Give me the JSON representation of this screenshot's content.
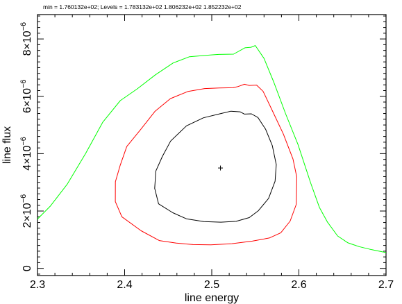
{
  "chart_data": {
    "type": "line",
    "title": "min = 1.760132e+02; Levels =  1.783132e+02 1.806232e+02 1.852232e+02",
    "xlabel": "line energy",
    "ylabel": "line flux",
    "xlim": [
      2.3,
      2.7
    ],
    "ylim": [
      -2.5e-07,
      8.85e-06
    ],
    "x_ticks": [
      {
        "value": 2.3,
        "label": "2.3"
      },
      {
        "value": 2.4,
        "label": "2.4"
      },
      {
        "value": 2.5,
        "label": "2.5"
      },
      {
        "value": 2.6,
        "label": "2.6"
      },
      {
        "value": 2.7,
        "label": "2.7"
      }
    ],
    "y_ticks": [
      {
        "value": 0,
        "mantissa": "0",
        "exponent": ""
      },
      {
        "value": 2e-06,
        "mantissa": "2×10",
        "exponent": "−6"
      },
      {
        "value": 4e-06,
        "mantissa": "4×10",
        "exponent": "−6"
      },
      {
        "value": 6e-06,
        "mantissa": "6×10",
        "exponent": "−6"
      },
      {
        "value": 8e-06,
        "mantissa": "8×10",
        "exponent": "−6"
      }
    ],
    "best_fit": {
      "x": 2.51,
      "y": 3.5e-06
    },
    "grid": false,
    "series": [
      {
        "color": "#000000",
        "level": "1.783132e+02",
        "closed": true,
        "points": [
          [
            2.5108,
            5.4e-06
          ],
          [
            2.522,
            5.48e-06
          ],
          [
            2.5325,
            5.46e-06
          ],
          [
            2.5375,
            5.38e-06
          ],
          [
            2.5455,
            5.39e-06
          ],
          [
            2.553,
            5.26e-06
          ],
          [
            2.5618,
            4.85e-06
          ],
          [
            2.5695,
            4.28e-06
          ],
          [
            2.574,
            3.62e-06
          ],
          [
            2.5727,
            3.04e-06
          ],
          [
            2.5652,
            2.44e-06
          ],
          [
            2.5535,
            2.01e-06
          ],
          [
            2.543,
            1.77e-06
          ],
          [
            2.528,
            1.64e-06
          ],
          [
            2.5105,
            1.61e-06
          ],
          [
            2.4908,
            1.63e-06
          ],
          [
            2.4708,
            1.73e-06
          ],
          [
            2.4553,
            1.94e-06
          ],
          [
            2.439,
            2.25e-06
          ],
          [
            2.4345,
            2.79e-06
          ],
          [
            2.4358,
            3.39e-06
          ],
          [
            2.4433,
            3.9e-06
          ],
          [
            2.4528,
            4.44e-06
          ],
          [
            2.471,
            4.97e-06
          ],
          [
            2.4905,
            5.25e-06
          ],
          [
            2.5108,
            5.4e-06
          ]
        ]
      },
      {
        "color": "#ff0000",
        "level": "1.806232e+02",
        "closed": true,
        "points": [
          [
            2.5085,
            6.29e-06
          ],
          [
            2.5245,
            6.3e-06
          ],
          [
            2.5302,
            6.34e-06
          ],
          [
            2.5375,
            6.42e-06
          ],
          [
            2.543,
            6.38e-06
          ],
          [
            2.5515,
            6.39e-06
          ],
          [
            2.559,
            6.17e-06
          ],
          [
            2.5695,
            5.5e-06
          ],
          [
            2.5822,
            4.68e-06
          ],
          [
            2.5932,
            3.81e-06
          ],
          [
            2.5975,
            3.19e-06
          ],
          [
            2.597,
            2.23e-06
          ],
          [
            2.59,
            1.65e-06
          ],
          [
            2.5792,
            1.24e-06
          ],
          [
            2.566,
            1.06e-06
          ],
          [
            2.5465,
            9.5e-07
          ],
          [
            2.523,
            8.6e-07
          ],
          [
            2.499,
            8.2e-07
          ],
          [
            2.4785,
            8.3e-07
          ],
          [
            2.4593,
            8.8e-07
          ],
          [
            2.4398,
            9.7e-07
          ],
          [
            2.419,
            1.31e-06
          ],
          [
            2.3968,
            1.8e-06
          ],
          [
            2.3893,
            2.33e-06
          ],
          [
            2.3894,
            3.02e-06
          ],
          [
            2.395,
            3.6e-06
          ],
          [
            2.4025,
            4.25e-06
          ],
          [
            2.4188,
            4.86e-06
          ],
          [
            2.435,
            5.48e-06
          ],
          [
            2.4525,
            5.92e-06
          ],
          [
            2.4728,
            6.17e-06
          ],
          [
            2.4918,
            6.27e-06
          ],
          [
            2.5085,
            6.29e-06
          ]
        ]
      },
      {
        "color": "#00ff00",
        "level": "1.852232e+02",
        "closed": false,
        "points": [
          [
            2.3,
            1.72e-06
          ],
          [
            2.315,
            2.18e-06
          ],
          [
            2.334,
            2.93e-06
          ],
          [
            2.3553,
            4.01e-06
          ],
          [
            2.375,
            5.1e-06
          ],
          [
            2.395,
            5.85e-06
          ],
          [
            2.4145,
            6.26e-06
          ],
          [
            2.4353,
            6.75e-06
          ],
          [
            2.4555,
            7.16e-06
          ],
          [
            2.4745,
            7.38e-06
          ],
          [
            2.4982,
            7.44e-06
          ],
          [
            2.508,
            7.46e-06
          ],
          [
            2.525,
            7.47e-06
          ],
          [
            2.538,
            7.69e-06
          ],
          [
            2.545,
            7.71e-06
          ],
          [
            2.55,
            7.77e-06
          ],
          [
            2.56,
            7.32e-06
          ],
          [
            2.5712,
            6.49e-06
          ],
          [
            2.5848,
            5.39e-06
          ],
          [
            2.599,
            4.32e-06
          ],
          [
            2.6135,
            2.98e-06
          ],
          [
            2.6235,
            2.13e-06
          ],
          [
            2.6328,
            1.61e-06
          ],
          [
            2.6445,
            1.13e-06
          ],
          [
            2.6563,
            8.9e-07
          ],
          [
            2.669,
            7.6e-07
          ],
          [
            2.6838,
            6.5e-07
          ],
          [
            2.697,
            5.7e-07
          ],
          [
            2.7,
            5.5e-07
          ]
        ]
      }
    ]
  }
}
